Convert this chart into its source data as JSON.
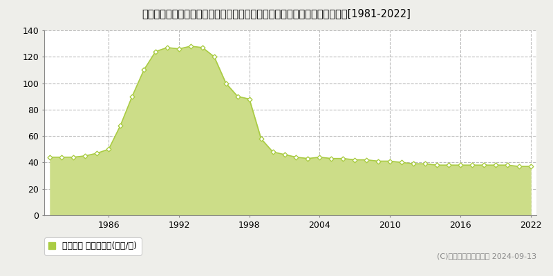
{
  "title": "東京都西多摩郡瑞穂町大字笥根ケ崎字狭山１８８番６　地価公示　地価推移[1981-2022]",
  "years": [
    1981,
    1982,
    1983,
    1984,
    1985,
    1986,
    1987,
    1988,
    1989,
    1990,
    1991,
    1992,
    1993,
    1994,
    1995,
    1996,
    1997,
    1998,
    1999,
    2000,
    2001,
    2002,
    2003,
    2004,
    2005,
    2006,
    2007,
    2008,
    2009,
    2010,
    2011,
    2012,
    2013,
    2014,
    2015,
    2016,
    2017,
    2018,
    2019,
    2020,
    2021,
    2022
  ],
  "values": [
    44,
    44,
    44,
    45,
    47,
    50,
    68,
    90,
    110,
    124,
    127,
    126,
    128,
    127,
    120,
    100,
    90,
    88,
    58,
    48,
    46,
    44,
    43,
    44,
    43,
    43,
    42,
    42,
    41,
    41,
    40,
    39,
    39,
    38,
    38,
    38,
    38,
    38,
    38,
    38,
    37,
    37
  ],
  "line_color": "#aacc44",
  "fill_color": "#ccdd88",
  "fill_alpha": 1.0,
  "marker_color": "#ffffff",
  "marker_edge_color": "#aacc44",
  "ylim": [
    0,
    140
  ],
  "yticks": [
    0,
    20,
    40,
    60,
    80,
    100,
    120,
    140
  ],
  "xtick_years": [
    1986,
    1992,
    1998,
    2004,
    2010,
    2016,
    2022
  ],
  "grid_color": "#bbbbbb",
  "figure_bg_color": "#eeeeea",
  "plot_bg_color": "#ffffff",
  "legend_label": "地価公示 平均坂単価(万円/坂)",
  "legend_marker_color": "#aacc44",
  "copyright_text": "(C)土地価格ドットコム 2024-09-13",
  "title_fontsize": 10.5,
  "axis_fontsize": 9,
  "legend_fontsize": 9
}
